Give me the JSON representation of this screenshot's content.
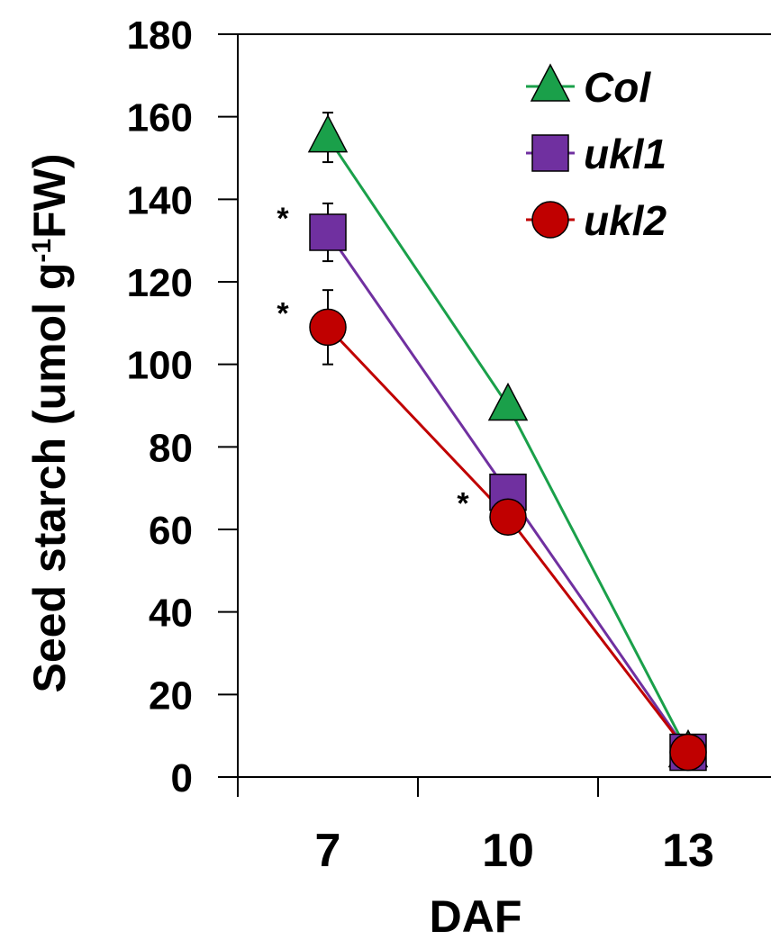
{
  "chart_data": {
    "type": "line",
    "xlabel": "DAF",
    "ylabel": {
      "main": "Seed starch (umol g",
      "sup": "-1",
      "tail": "FW)"
    },
    "ylim": [
      0,
      180
    ],
    "yticks": [
      "0",
      "20",
      "40",
      "60",
      "80",
      "100",
      "120",
      "140",
      "160",
      "180"
    ],
    "categories": [
      "7",
      "10",
      "13"
    ],
    "grid": false,
    "legend_position": "top-right",
    "series": [
      {
        "name": "Col",
        "marker": "triangle",
        "color": "#1aa04a",
        "markerColor": "#1aa04a",
        "values": [
          155,
          90,
          6
        ],
        "errors": [
          6,
          0,
          0
        ]
      },
      {
        "name": "ukl1",
        "marker": "square",
        "color": "#7030a0",
        "markerColor": "#7030a0",
        "values": [
          132,
          69,
          6
        ],
        "errors": [
          7,
          0,
          0
        ]
      },
      {
        "name": "ukl2",
        "marker": "circle",
        "color": "#c00000",
        "markerColor": "#c00000",
        "values": [
          109,
          63,
          6
        ],
        "errors": [
          9,
          0,
          0
        ]
      }
    ],
    "significance": [
      {
        "label": "*",
        "series": "ukl1",
        "category": "7"
      },
      {
        "label": "*",
        "series": "ukl2",
        "category": "7"
      },
      {
        "label": "*",
        "series": "ukl2",
        "category": "10"
      }
    ]
  }
}
